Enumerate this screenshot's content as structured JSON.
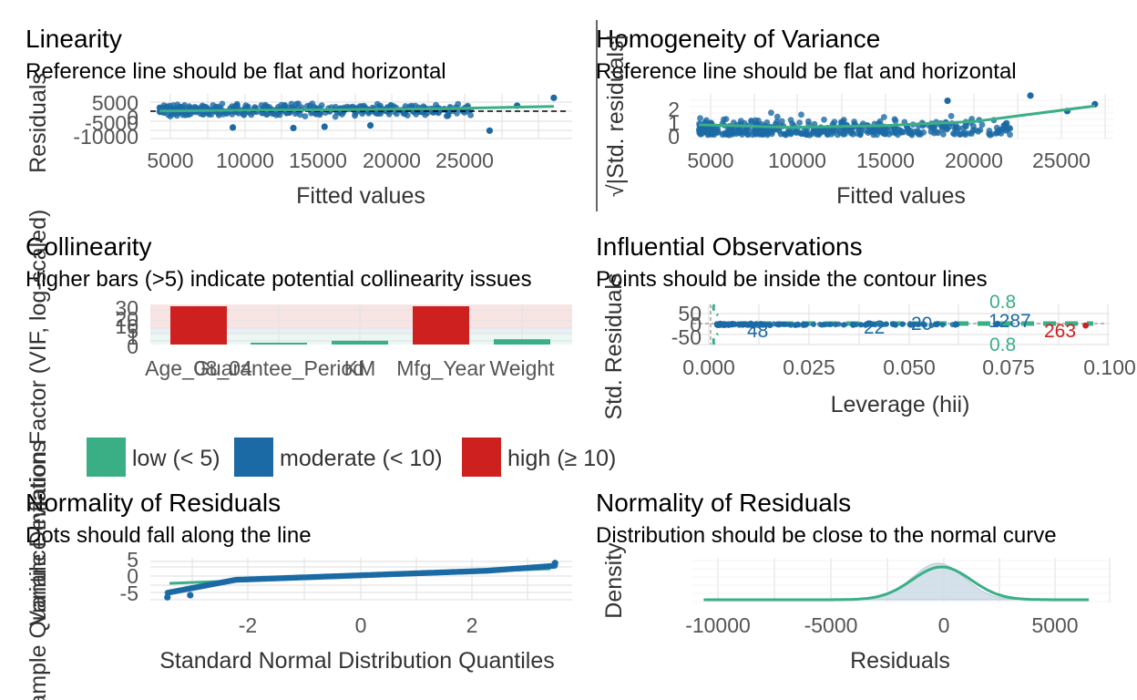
{
  "colors": {
    "green": "#3aaf85",
    "blue": "#1b6aa5",
    "red": "#cd201f",
    "grey_density": "#c9d9e6"
  },
  "panels": {
    "linearity": {
      "title": "Linearity",
      "subtitle": "Reference line should be flat and horizontal",
      "xlabel": "Fitted values",
      "ylabel": "Residuals",
      "xticks": [
        "5000",
        "10000",
        "15000",
        "20000",
        "25000"
      ],
      "yticks": [
        "5000",
        "0",
        "-5000",
        "-10000"
      ]
    },
    "homogeneity": {
      "title": "Homogeneity of Variance",
      "subtitle": "Reference line should be flat and horizontal",
      "xlabel": "Fitted values",
      "ylabel": "√|Std. residuals|",
      "xticks": [
        "5000",
        "10000",
        "15000",
        "20000",
        "25000"
      ],
      "yticks": [
        "2",
        "1",
        "0"
      ]
    },
    "collinearity": {
      "title": "Collinearity",
      "subtitle": "Higher bars (>5) indicate potential collinearity issues",
      "ylabel": "Variance Inflation Factor (VIF, log-scaled)",
      "yticks": [
        "30",
        "20",
        "10",
        "5",
        "1",
        "0"
      ],
      "legend": [
        "low (< 5)",
        "moderate (< 10)",
        "high (≥ 10)"
      ]
    },
    "influential": {
      "title": "Influential Observations",
      "subtitle": "Points should be inside the contour lines",
      "xlabel": "Leverage (hii)",
      "ylabel": "Std. Residuals",
      "xticks": [
        "0.000",
        "0.025",
        "0.050",
        "0.075",
        "0.100"
      ],
      "yticks": [
        "50",
        "0",
        "-50"
      ],
      "contour_labels": [
        "0.8",
        "0.8"
      ],
      "point_labels": [
        "48",
        "22",
        "20",
        "1287",
        "263"
      ]
    },
    "qq": {
      "title": "Normality of Residuals",
      "subtitle": "Dots should fall along the line",
      "xlabel": "Standard Normal Distribution Quantiles",
      "ylabel": "Sample Quantile Deviations",
      "xticks": [
        "-2",
        "0",
        "2"
      ],
      "yticks": [
        "5",
        "0",
        "-5"
      ]
    },
    "density": {
      "title": "Normality of Residuals",
      "subtitle": "Distribution should be close to the normal curve",
      "xlabel": "Residuals",
      "ylabel": "Density",
      "xticks": [
        "-10000",
        "-5000",
        "0",
        "5000"
      ]
    }
  },
  "chart_data": [
    {
      "type": "scatter",
      "title": "Linearity",
      "subtitle": "Reference line should be flat and horizontal",
      "xlabel": "Fitted values",
      "ylabel": "Residuals",
      "xlim": [
        4500,
        27500
      ],
      "ylim": [
        -11000,
        6000
      ],
      "reference_line": 0,
      "smooth": {
        "x": [
          5000,
          10000,
          15000,
          20000,
          26500
        ],
        "y": [
          -500,
          -200,
          0,
          300,
          1200
        ]
      }
    },
    {
      "type": "scatter",
      "title": "Homogeneity of Variance",
      "subtitle": "Reference line should be flat and horizontal",
      "xlabel": "Fitted values",
      "ylabel": "√|Std. residuals|",
      "xlim": [
        4500,
        27500
      ],
      "ylim": [
        0,
        2.6
      ],
      "smooth": {
        "x": [
          5000,
          10000,
          15000,
          20000,
          26500
        ],
        "y": [
          0.8,
          0.65,
          0.75,
          1.0,
          1.9
        ]
      }
    },
    {
      "type": "bar",
      "title": "Collinearity",
      "subtitle": "Higher bars (>5) indicate potential collinearity issues",
      "ylabel": "Variance Inflation Factor (VIF, log-scaled)",
      "categories": [
        "Age_08_04",
        "Guarantee_Period",
        "KM",
        "Mfg_Year",
        "Weight"
      ],
      "values": [
        30,
        1.1,
        1.4,
        30,
        1.6
      ],
      "risk": [
        "high",
        "low",
        "low",
        "high",
        "low"
      ],
      "legend": [
        "low (< 5)",
        "moderate (< 10)",
        "high (≥ 10)"
      ]
    },
    {
      "type": "scatter",
      "title": "Influential Observations",
      "subtitle": "Points should be inside the contour lines",
      "xlabel": "Leverage (hii)",
      "ylabel": "Std. Residuals",
      "xlim": [
        0,
        0.1
      ],
      "ylim": [
        -60,
        60
      ],
      "labeled_points": [
        {
          "label": "48",
          "x": 0.011,
          "y": -3
        },
        {
          "label": "22",
          "x": 0.036,
          "y": -1
        },
        {
          "label": "20",
          "x": 0.046,
          "y": 1
        },
        {
          "label": "1287",
          "x": 0.072,
          "y": 2
        },
        {
          "label": "263",
          "x": 0.094,
          "y": -3
        }
      ]
    },
    {
      "type": "scatter",
      "title": "Normality of Residuals",
      "subtitle": "Dots should fall along the line",
      "xlabel": "Standard Normal Distribution Quantiles",
      "ylabel": "Sample Quantile Deviations",
      "xlim": [
        -3.7,
        3.7
      ],
      "ylim": [
        -6.5,
        5.5
      ],
      "reference_line": {
        "x": [
          -3.4,
          3.4
        ],
        "y": [
          -1.5,
          2.5
        ]
      }
    },
    {
      "type": "area",
      "title": "Normality of Residuals",
      "subtitle": "Distribution should be close to the normal curve",
      "xlabel": "Residuals",
      "ylabel": "Density",
      "xlim": [
        -11000,
        7500
      ],
      "normal_curve": {
        "mean": 0,
        "sd": 1300
      },
      "x_range": [
        -10500,
        6500
      ]
    }
  ]
}
